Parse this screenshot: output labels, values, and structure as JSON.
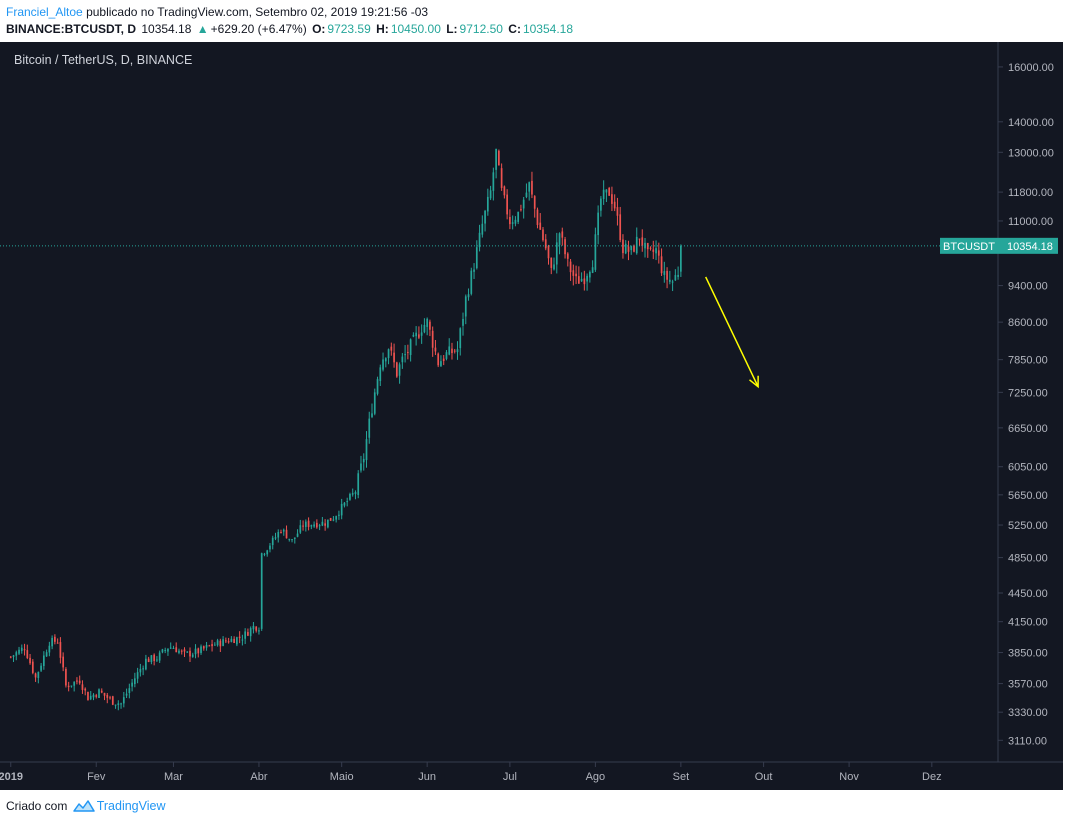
{
  "header": {
    "author": "Franciel_Altoe",
    "published_text": "publicado no TradingView.com, Setembro 02, 2019 19:21:56 -03",
    "symbol": "BINANCE:BTCUSDT, D",
    "last": "10354.18",
    "change": "+629.20 (+6.47%)",
    "o_label": "O:",
    "o": "9723.59",
    "h_label": "H:",
    "h": "10450.00",
    "l_label": "L:",
    "l": "9712.50",
    "c_label": "C:",
    "c": "10354.18"
  },
  "chart_title": "Bitcoin / TetherUS, D, BINANCE",
  "price_tag": {
    "label": "BTCUSDT",
    "value": "10354.18"
  },
  "colors": {
    "background": "#131722",
    "up": "#26a69a",
    "down": "#ef5350",
    "arrow": "#ffff00",
    "last_line": "#26a69a"
  },
  "footer": {
    "text": "Criado com",
    "brand": "TradingView"
  },
  "chart_data": {
    "type": "candlestick",
    "scale": "log",
    "ylim": [
      2950,
      17000
    ],
    "y_ticks": [
      "16000.00",
      "14000.00",
      "13000.00",
      "11800.00",
      "11000.00",
      "9400.00",
      "8600.00",
      "7850.00",
      "7250.00",
      "6650.00",
      "6050.00",
      "5650.00",
      "5250.00",
      "4850.00",
      "4450.00",
      "4150.00",
      "3850.00",
      "3570.00",
      "3330.00",
      "3110.00"
    ],
    "x_ticks": [
      "2019",
      "Fev",
      "Mar",
      "Abr",
      "Maio",
      "Jun",
      "Jul",
      "Ago",
      "Set",
      "Out",
      "Nov",
      "Dez"
    ],
    "x_tick_days": [
      0,
      31,
      59,
      90,
      120,
      151,
      181,
      212,
      243,
      273,
      304,
      334
    ],
    "xlim": [
      -1,
      358
    ],
    "last_price": 10354.18,
    "close_path": [
      [
        0,
        3810
      ],
      [
        5,
        3900
      ],
      [
        9,
        3620
      ],
      [
        14,
        3950
      ],
      [
        17,
        3960
      ],
      [
        20,
        3550
      ],
      [
        25,
        3600
      ],
      [
        28,
        3450
      ],
      [
        32,
        3500
      ],
      [
        37,
        3420
      ],
      [
        40,
        3400
      ],
      [
        45,
        3620
      ],
      [
        49,
        3780
      ],
      [
        53,
        3800
      ],
      [
        57,
        3900
      ],
      [
        59,
        3900
      ],
      [
        63,
        3830
      ],
      [
        68,
        3860
      ],
      [
        73,
        3920
      ],
      [
        78,
        3960
      ],
      [
        84,
        4000
      ],
      [
        88,
        4100
      ],
      [
        90,
        4100
      ],
      [
        91,
        4900
      ],
      [
        95,
        5050
      ],
      [
        98,
        5200
      ],
      [
        102,
        5050
      ],
      [
        106,
        5250
      ],
      [
        110,
        5270
      ],
      [
        114,
        5280
      ],
      [
        117,
        5350
      ],
      [
        121,
        5520
      ],
      [
        125,
        5700
      ],
      [
        128,
        6200
      ],
      [
        131,
        7000
      ],
      [
        134,
        7800
      ],
      [
        137,
        8100
      ],
      [
        140,
        7600
      ],
      [
        142,
        7850
      ],
      [
        146,
        8200
      ],
      [
        149,
        8500
      ],
      [
        151,
        8600
      ],
      [
        155,
        7800
      ],
      [
        158,
        7950
      ],
      [
        162,
        8050
      ],
      [
        165,
        9100
      ],
      [
        168,
        9900
      ],
      [
        171,
        10900
      ],
      [
        174,
        11800
      ],
      [
        176,
        13000
      ],
      [
        178,
        11800
      ],
      [
        181,
        11000
      ],
      [
        184,
        11200
      ],
      [
        188,
        12000
      ],
      [
        191,
        11000
      ],
      [
        194,
        10300
      ],
      [
        196,
        9700
      ],
      [
        199,
        10700
      ],
      [
        202,
        9900
      ],
      [
        205,
        9500
      ],
      [
        208,
        9600
      ],
      [
        211,
        10000
      ],
      [
        214,
        11600
      ],
      [
        217,
        11800
      ],
      [
        219,
        11400
      ],
      [
        222,
        10300
      ],
      [
        225,
        10200
      ],
      [
        228,
        10600
      ],
      [
        231,
        10100
      ],
      [
        234,
        10250
      ],
      [
        237,
        9600
      ],
      [
        240,
        9500
      ],
      [
        242,
        9724
      ],
      [
        243,
        10354.18
      ]
    ],
    "arrow": {
      "from": [
        252,
        9600
      ],
      "to": [
        271,
        7350
      ]
    }
  }
}
